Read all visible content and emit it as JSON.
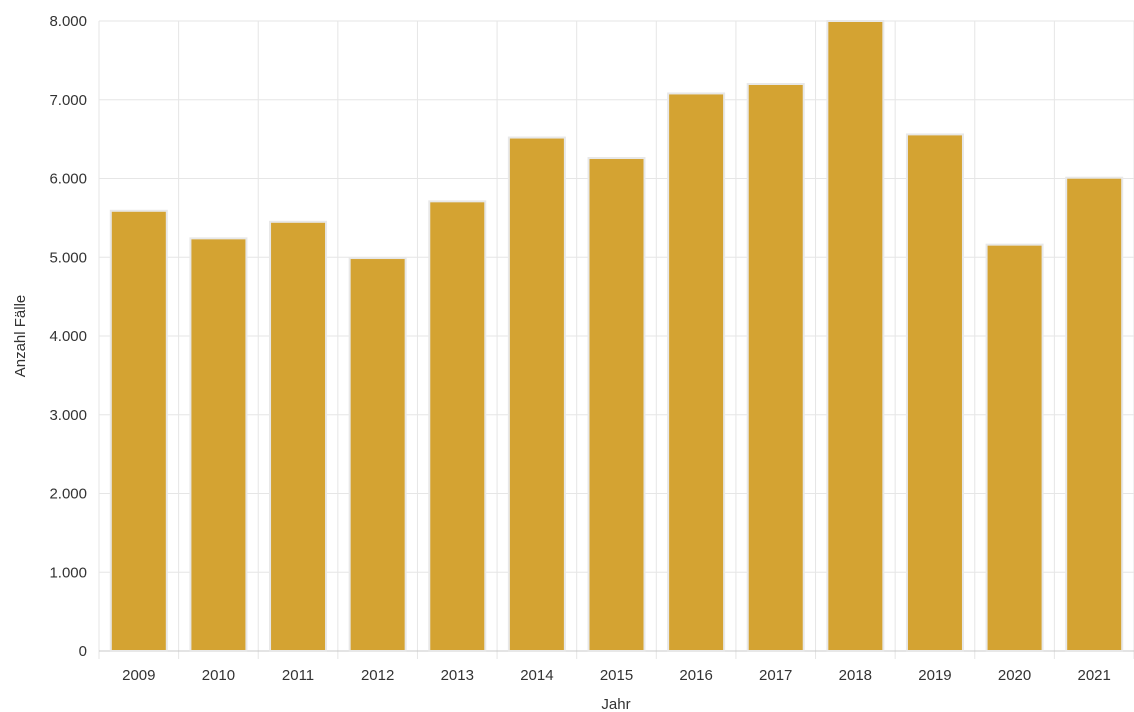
{
  "chart_data": {
    "type": "bar",
    "categories": [
      "2009",
      "2010",
      "2011",
      "2012",
      "2013",
      "2014",
      "2015",
      "2016",
      "2017",
      "2018",
      "2019",
      "2020",
      "2021"
    ],
    "values": [
      5590,
      5240,
      5450,
      4990,
      5710,
      6520,
      6260,
      7080,
      7200,
      8000,
      6560,
      5160,
      6010
    ],
    "xlabel": "Jahr",
    "ylabel": "Anzahl Fälle",
    "ylim": [
      0,
      8000
    ],
    "yticks": [
      "0",
      "1.000",
      "2.000",
      "3.000",
      "4.000",
      "5.000",
      "6.000",
      "7.000",
      "8.000"
    ],
    "grid": true,
    "legend": "none",
    "colors": {
      "bar": "#d4a332",
      "bar_border": "#e8e8e8",
      "grid": "#e6e6e6"
    }
  }
}
